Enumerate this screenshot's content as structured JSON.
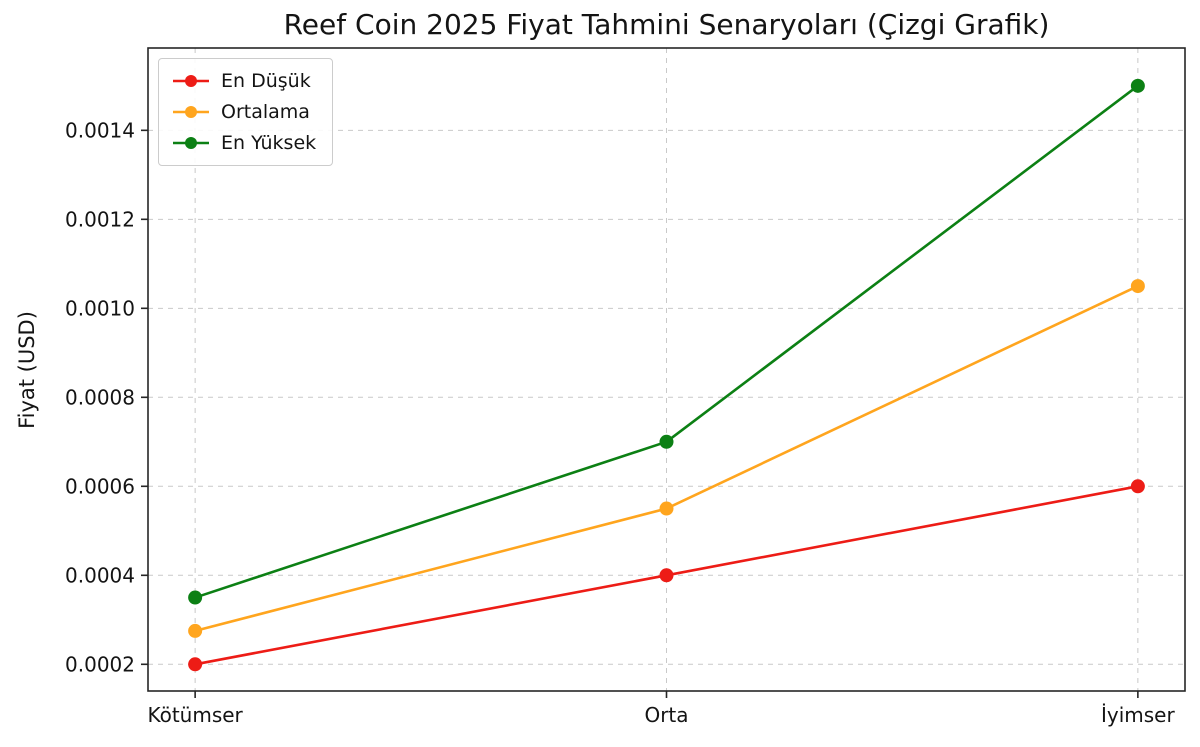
{
  "figure": {
    "title": "Reef Coin 2025 Fiyat Tahmini Senaryoları (Çizgi Grafik)"
  },
  "chart_data": {
    "type": "line",
    "title": "Reef Coin 2025 Fiyat Tahmini Senaryoları (Çizgi Grafik)",
    "xlabel": "",
    "ylabel": "Fiyat (USD)",
    "categories": [
      "Kötümser",
      "Orta",
      "İyimser"
    ],
    "series": [
      {
        "name": "En Düşük",
        "color": "#ed1c16",
        "values": [
          0.0002,
          0.0004,
          0.0006
        ]
      },
      {
        "name": "Ortalama",
        "color": "#ffa51e",
        "values": [
          0.000275,
          0.00055,
          0.00105
        ]
      },
      {
        "name": "En Yüksek",
        "color": "#0c8014",
        "values": [
          0.00035,
          0.0007,
          0.0015
        ]
      }
    ],
    "yticks": [
      0.0002,
      0.0004,
      0.0006,
      0.0008,
      0.001,
      0.0012,
      0.0014
    ],
    "ytick_labels": [
      "0.0002",
      "0.0004",
      "0.0006",
      "0.0008",
      "0.0010",
      "0.0012",
      "0.0014"
    ],
    "ylim": [
      0.00014,
      0.001585
    ],
    "grid": true,
    "grid_style": "dashed",
    "legend_position": "upper left",
    "legend_entries": [
      "En Düşük",
      "Ortalama",
      "En Yüksek"
    ]
  }
}
